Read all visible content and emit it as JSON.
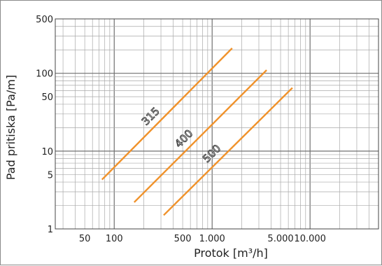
{
  "chart_data": {
    "type": "line",
    "xlabel": "Protok [m³/h]",
    "ylabel": "Pad pritiska [Pa/m]",
    "x_scale": "log",
    "y_scale": "log",
    "xlim": [
      25,
      50000
    ],
    "ylim": [
      1,
      500
    ],
    "x_ticks": [
      {
        "value": 50,
        "label": "50"
      },
      {
        "value": 100,
        "label": "100"
      },
      {
        "value": 500,
        "label": "500"
      },
      {
        "value": 1000,
        "label": "1.000"
      },
      {
        "value": 5000,
        "label": "5.000"
      },
      {
        "value": 10000,
        "label": "10.000"
      }
    ],
    "y_ticks": [
      {
        "value": 1,
        "label": "1"
      },
      {
        "value": 5,
        "label": "5"
      },
      {
        "value": 10,
        "label": "10"
      },
      {
        "value": 50,
        "label": "50"
      },
      {
        "value": 100,
        "label": "100"
      },
      {
        "value": 500,
        "label": "500"
      }
    ],
    "grid": true,
    "line_color": "#f0922b",
    "series": [
      {
        "name": "315",
        "x": [
          75,
          1600
        ],
        "y": [
          4.3,
          210
        ]
      },
      {
        "name": "400",
        "x": [
          160,
          3600
        ],
        "y": [
          2.2,
          110
        ]
      },
      {
        "name": "500",
        "x": [
          320,
          6600
        ],
        "y": [
          1.5,
          65
        ]
      }
    ]
  }
}
